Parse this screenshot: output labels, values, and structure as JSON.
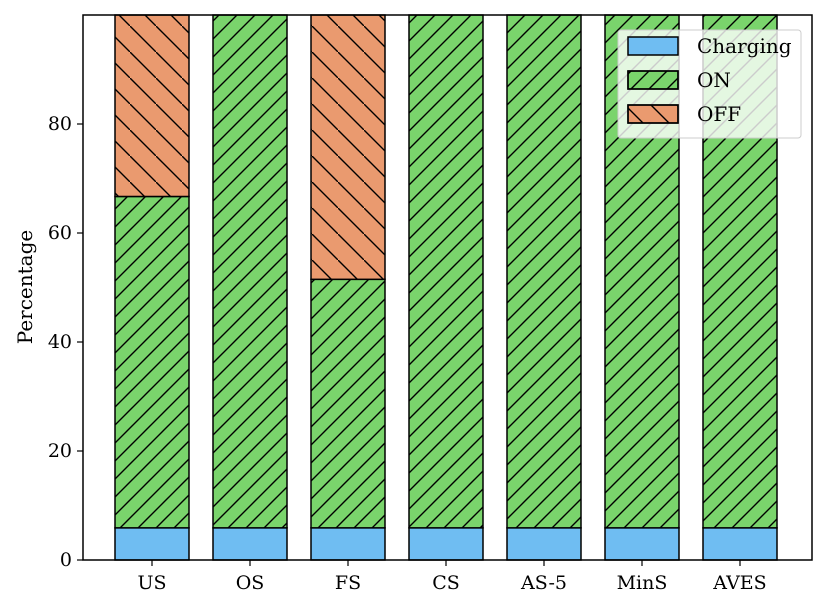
{
  "chart_data": {
    "type": "bar",
    "stacked": true,
    "categories": [
      "US",
      "OS",
      "FS",
      "CS",
      "AS-5",
      "MinS",
      "AVES"
    ],
    "series": [
      {
        "name": "Charging",
        "values": [
          5.9,
          5.9,
          5.9,
          5.9,
          5.9,
          5.9,
          5.9
        ],
        "color": "#6fbdf2",
        "hatch": "none"
      },
      {
        "name": "ON",
        "values": [
          60.8,
          94.1,
          45.6,
          94.1,
          94.1,
          94.1,
          94.1
        ],
        "color": "#7ad46c",
        "hatch": "forward-diagonal"
      },
      {
        "name": "OFF",
        "values": [
          33.3,
          0,
          48.5,
          0,
          0,
          0,
          0
        ],
        "color": "#ea9a6f",
        "hatch": "back-diagonal"
      }
    ],
    "xlabel": "",
    "ylabel": "Percentage",
    "ylim": [
      0,
      100
    ],
    "yticks": [
      0,
      20,
      40,
      60,
      80
    ],
    "grid": false,
    "legend": {
      "position": "top-right"
    }
  }
}
